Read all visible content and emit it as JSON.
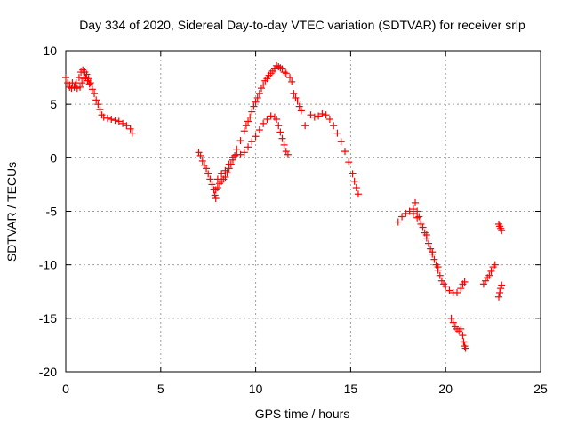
{
  "chart_data": {
    "type": "scatter",
    "title": "Day 334 of 2020, Sidereal Day-to-day VTEC variation (SDTVAR) for receiver srlp",
    "xlabel": "GPS time / hours",
    "ylabel": "SDTVAR / TECUs",
    "xlim": [
      0,
      25
    ],
    "ylim": [
      -20,
      10
    ],
    "xticks": [
      0,
      5,
      10,
      15,
      20,
      25
    ],
    "yticks": [
      -20,
      -15,
      -10,
      -5,
      0,
      5,
      10
    ],
    "xtick_labels": [
      "0",
      "5",
      "10",
      "15",
      "20",
      "25"
    ],
    "ytick_labels": [
      "-20",
      "-15",
      "-10",
      "-5",
      "0",
      "5",
      "10"
    ],
    "grid": true,
    "marker": "plus",
    "marker_color": "#ff0000",
    "series": [
      {
        "points": [
          [
            0.0,
            7.5
          ],
          [
            0.1,
            7.0
          ],
          [
            0.2,
            6.6
          ],
          [
            0.3,
            6.5
          ],
          [
            0.45,
            6.6
          ],
          [
            0.55,
            7.0
          ],
          [
            0.7,
            7.5
          ],
          [
            0.8,
            8.0
          ],
          [
            0.9,
            8.2
          ],
          [
            1.0,
            8.0
          ],
          [
            1.1,
            7.8
          ],
          [
            1.2,
            7.4
          ],
          [
            1.3,
            7.0
          ],
          [
            1.4,
            6.4
          ],
          [
            1.5,
            6.0
          ],
          [
            1.6,
            5.4
          ],
          [
            1.7,
            5.0
          ],
          [
            1.8,
            4.5
          ],
          [
            1.9,
            4.0
          ],
          [
            2.0,
            3.8
          ],
          [
            2.2,
            3.7
          ],
          [
            2.4,
            3.6
          ],
          [
            2.6,
            3.5
          ],
          [
            2.8,
            3.4
          ],
          [
            3.0,
            3.2
          ],
          [
            3.2,
            3.0
          ],
          [
            3.4,
            2.7
          ],
          [
            3.5,
            2.3
          ],
          [
            0.2,
            6.8
          ],
          [
            0.35,
            7.0
          ],
          [
            0.5,
            6.8
          ],
          [
            0.6,
            6.5
          ],
          [
            0.75,
            6.6
          ],
          [
            0.85,
            7.0
          ],
          [
            0.95,
            7.4
          ],
          [
            1.05,
            7.5
          ],
          [
            1.15,
            7.2
          ],
          [
            1.25,
            6.9
          ],
          [
            7.0,
            0.5
          ],
          [
            7.1,
            0.2
          ],
          [
            7.2,
            -0.3
          ],
          [
            7.3,
            -0.7
          ],
          [
            7.4,
            -1.0
          ],
          [
            7.5,
            -1.5
          ],
          [
            7.6,
            -2.0
          ],
          [
            7.7,
            -2.5
          ],
          [
            7.8,
            -3.0
          ],
          [
            7.85,
            -3.5
          ],
          [
            7.9,
            -3.8
          ],
          [
            7.9,
            -3.0
          ],
          [
            8.0,
            -2.8
          ],
          [
            8.1,
            -2.4
          ],
          [
            8.2,
            -2.2
          ],
          [
            8.3,
            -2.0
          ],
          [
            8.4,
            -1.8
          ],
          [
            8.5,
            -1.4
          ],
          [
            8.6,
            -1.0
          ],
          [
            8.7,
            -0.6
          ],
          [
            8.8,
            -0.2
          ],
          [
            8.9,
            0.2
          ],
          [
            9.0,
            0.3
          ],
          [
            9.2,
            0.3
          ],
          [
            9.4,
            0.5
          ],
          [
            9.6,
            1.0
          ],
          [
            9.8,
            1.5
          ],
          [
            10.0,
            2.0
          ],
          [
            10.2,
            2.6
          ],
          [
            10.4,
            3.2
          ],
          [
            10.6,
            3.6
          ],
          [
            10.8,
            3.9
          ],
          [
            11.0,
            3.8
          ],
          [
            11.1,
            3.6
          ],
          [
            11.2,
            3.0
          ],
          [
            11.3,
            2.4
          ],
          [
            11.4,
            1.8
          ],
          [
            11.5,
            1.2
          ],
          [
            11.6,
            0.6
          ],
          [
            11.7,
            0.3
          ],
          [
            8.0,
            -2.0
          ],
          [
            8.2,
            -1.5
          ],
          [
            8.4,
            -1.2
          ],
          [
            8.6,
            -0.6
          ],
          [
            8.8,
            0.0
          ],
          [
            9.0,
            0.8
          ],
          [
            9.2,
            1.6
          ],
          [
            9.4,
            2.5
          ],
          [
            9.6,
            3.4
          ],
          [
            9.8,
            4.3
          ],
          [
            10.0,
            5.2
          ],
          [
            10.2,
            6.0
          ],
          [
            10.4,
            6.8
          ],
          [
            10.6,
            7.4
          ],
          [
            10.8,
            7.9
          ],
          [
            11.0,
            8.3
          ],
          [
            11.2,
            8.5
          ],
          [
            11.4,
            8.3
          ],
          [
            11.6,
            7.9
          ],
          [
            11.8,
            7.5
          ],
          [
            11.9,
            7.1
          ],
          [
            9.5,
            3.0
          ],
          [
            9.7,
            3.8
          ],
          [
            9.9,
            4.8
          ],
          [
            10.1,
            5.6
          ],
          [
            10.3,
            6.5
          ],
          [
            10.5,
            7.2
          ],
          [
            10.7,
            7.7
          ],
          [
            10.9,
            8.1
          ],
          [
            11.1,
            8.6
          ],
          [
            11.3,
            8.4
          ],
          [
            11.5,
            8.0
          ],
          [
            12.0,
            6.0
          ],
          [
            12.1,
            5.6
          ],
          [
            12.2,
            5.3
          ],
          [
            12.3,
            4.8
          ],
          [
            12.4,
            4.4
          ],
          [
            12.6,
            3.0
          ],
          [
            12.9,
            4.0
          ],
          [
            13.1,
            3.8
          ],
          [
            13.3,
            3.9
          ],
          [
            13.5,
            4.1
          ],
          [
            13.7,
            4.0
          ],
          [
            13.9,
            3.6
          ],
          [
            14.1,
            3.0
          ],
          [
            14.3,
            2.3
          ],
          [
            14.5,
            1.5
          ],
          [
            14.7,
            0.6
          ],
          [
            14.9,
            -0.4
          ],
          [
            15.1,
            -1.5
          ],
          [
            15.2,
            -2.2
          ],
          [
            15.3,
            -2.8
          ],
          [
            15.4,
            -3.4
          ],
          [
            17.5,
            -6.0
          ],
          [
            17.7,
            -5.5
          ],
          [
            17.9,
            -5.2
          ],
          [
            18.1,
            -5.0
          ],
          [
            18.3,
            -4.8
          ],
          [
            18.4,
            -4.2
          ],
          [
            18.5,
            -5.0
          ],
          [
            18.6,
            -5.5
          ],
          [
            18.7,
            -6.0
          ],
          [
            18.8,
            -6.5
          ],
          [
            18.9,
            -7.0
          ],
          [
            19.0,
            -7.5
          ],
          [
            19.1,
            -8.0
          ],
          [
            19.2,
            -8.5
          ],
          [
            19.3,
            -9.0
          ],
          [
            19.4,
            -9.5
          ],
          [
            19.5,
            -10.0
          ],
          [
            19.6,
            -10.5
          ],
          [
            19.7,
            -11.0
          ],
          [
            19.8,
            -11.5
          ],
          [
            19.9,
            -11.8
          ],
          [
            20.0,
            -12.0
          ],
          [
            20.2,
            -12.4
          ],
          [
            20.4,
            -12.6
          ],
          [
            20.6,
            -12.6
          ],
          [
            20.8,
            -12.2
          ],
          [
            20.9,
            -11.8
          ],
          [
            21.0,
            -11.6
          ],
          [
            18.3,
            -5.2
          ],
          [
            18.5,
            -5.6
          ],
          [
            18.7,
            -6.2
          ],
          [
            19.0,
            -7.2
          ],
          [
            19.3,
            -8.8
          ],
          [
            19.6,
            -10.2
          ],
          [
            20.3,
            -15.0
          ],
          [
            20.4,
            -15.4
          ],
          [
            20.5,
            -15.8
          ],
          [
            20.6,
            -16.0
          ],
          [
            20.7,
            -16.2
          ],
          [
            20.8,
            -16.0
          ],
          [
            20.9,
            -16.6
          ],
          [
            20.95,
            -17.2
          ],
          [
            21.0,
            -17.6
          ],
          [
            21.05,
            -17.8
          ],
          [
            22.0,
            -11.8
          ],
          [
            22.1,
            -11.5
          ],
          [
            22.2,
            -11.2
          ],
          [
            22.3,
            -11.0
          ],
          [
            22.4,
            -10.6
          ],
          [
            22.5,
            -10.2
          ],
          [
            22.6,
            -10.0
          ],
          [
            22.8,
            -6.2
          ],
          [
            22.85,
            -6.4
          ],
          [
            22.9,
            -6.6
          ],
          [
            22.95,
            -6.8
          ],
          [
            22.8,
            -13.0
          ],
          [
            22.85,
            -12.6
          ],
          [
            22.9,
            -12.2
          ],
          [
            22.95,
            -11.9
          ]
        ]
      }
    ]
  }
}
